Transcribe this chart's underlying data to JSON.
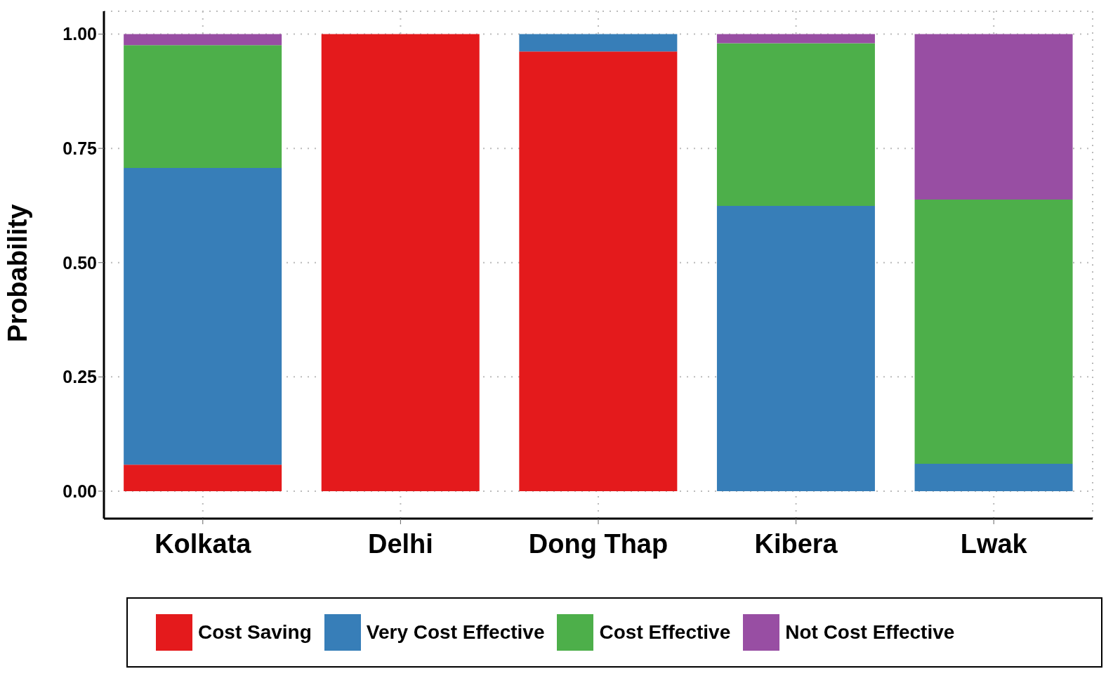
{
  "chart_data": {
    "type": "bar",
    "stacked": true,
    "ylabel": "Probability",
    "categories": [
      "Kolkata",
      "Delhi",
      "Dong Thap",
      "Kibera",
      "Lwak"
    ],
    "series": [
      {
        "name": "Cost Saving",
        "color": "#e41a1c",
        "values": [
          0.058,
          1.0,
          0.962,
          0,
          0
        ]
      },
      {
        "name": "Very Cost Effective",
        "color": "#377eb8",
        "values": [
          0.649,
          0,
          0.038,
          0.624,
          0.06
        ]
      },
      {
        "name": "Cost Effective",
        "color": "#4daf4a",
        "values": [
          0.269,
          0,
          0,
          0.356,
          0.578
        ]
      },
      {
        "name": "Not Cost Effective",
        "color": "#984ea3",
        "values": [
          0.024,
          0,
          0,
          0.02,
          0.362
        ]
      }
    ],
    "ylim": [
      -0.06,
      1.05
    ],
    "yticks": [
      {
        "value": 0,
        "label": "0.00"
      },
      {
        "value": 0.25,
        "label": "0.25"
      },
      {
        "value": 0.5,
        "label": "0.50"
      },
      {
        "value": 0.75,
        "label": "0.75"
      },
      {
        "value": 1,
        "label": "1.00"
      }
    ],
    "grid": true,
    "line_style": "dotted",
    "legend": "bottom"
  }
}
